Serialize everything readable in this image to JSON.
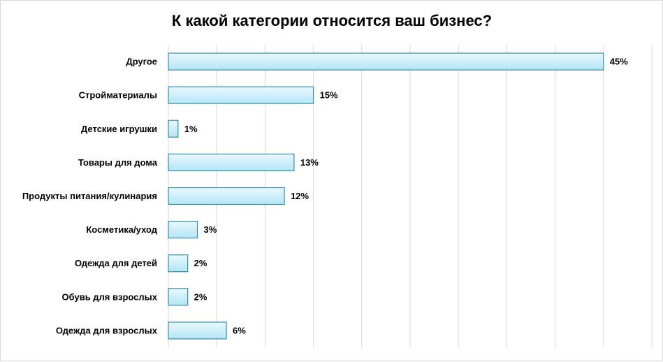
{
  "chart_data": {
    "type": "bar",
    "orientation": "horizontal",
    "title": "К какой категории относится ваш бизнес?",
    "categories": [
      "Другое",
      "Стройматериалы",
      "Детские игрушки",
      "Товары для дома",
      "Продукты питания/кулинария",
      "Косметика/уход",
      "Одежда для детей",
      "Обувь для взрослых",
      "Одежда для взрослых"
    ],
    "values": [
      45,
      15,
      1,
      13,
      12,
      3,
      2,
      2,
      6
    ],
    "value_labels": [
      "45%",
      "15%",
      "1%",
      "13%",
      "12%",
      "3%",
      "2%",
      "2%",
      "6%"
    ],
    "xlim": [
      0,
      50
    ],
    "x_gridlines": true,
    "x_tick_labels_visible": false,
    "legend": "none",
    "colors": {
      "bar_fill_top": "#e9f8fd",
      "bar_fill_bottom": "#b3e6f6",
      "bar_stroke": "#3a8ea6",
      "gridline": "#d9d9d9"
    }
  }
}
